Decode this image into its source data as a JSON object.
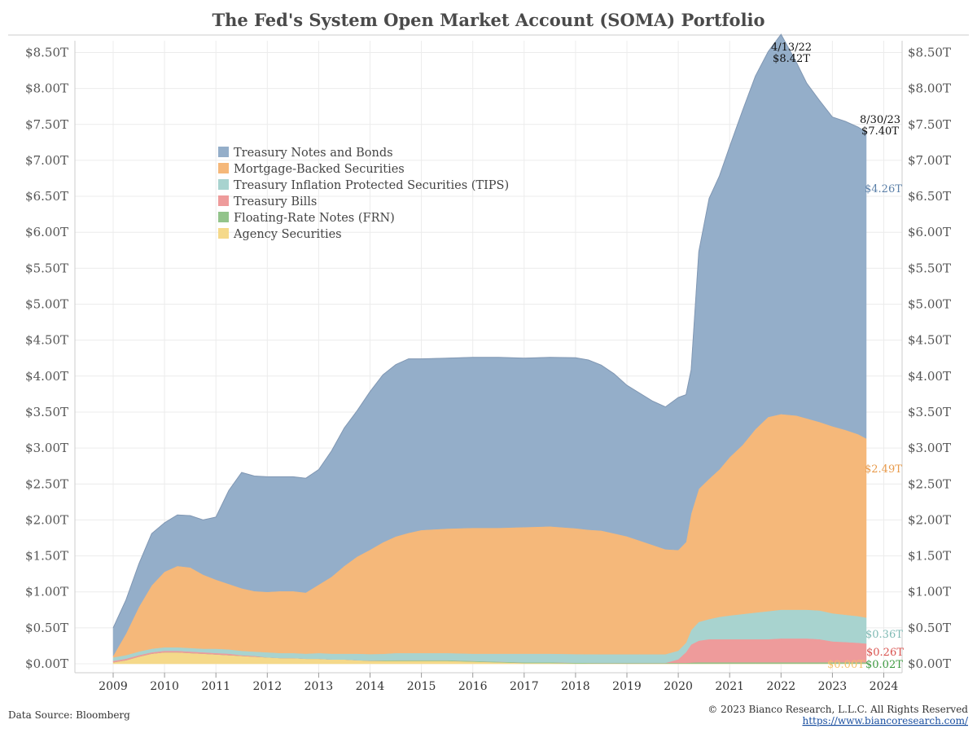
{
  "chart_data": {
    "type": "area",
    "stacked": true,
    "title": "The Fed's System Open Market Account (SOMA) Portfolio",
    "y_ticks": [
      "$0.00T",
      "$0.50T",
      "$1.00T",
      "$1.50T",
      "$2.00T",
      "$2.50T",
      "$3.00T",
      "$3.50T",
      "$4.00T",
      "$4.50T",
      "$5.00T",
      "$5.50T",
      "$6.00T",
      "$6.50T",
      "$7.00T",
      "$7.50T",
      "$8.00T",
      "$8.50T"
    ],
    "x_ticks": [
      "2009",
      "2010",
      "2011",
      "2012",
      "2013",
      "2014",
      "2015",
      "2016",
      "2017",
      "2018",
      "2019",
      "2020",
      "2021",
      "2022",
      "2023",
      "2024"
    ],
    "ylim": [
      0,
      8.7
    ],
    "xlim": [
      2008.9,
      2024.3
    ],
    "grid": true,
    "legend_position": "upper-left",
    "x": [
      2009.0,
      2009.25,
      2009.5,
      2009.75,
      2010.0,
      2010.25,
      2010.5,
      2010.75,
      2011.0,
      2011.25,
      2011.5,
      2011.75,
      2012.0,
      2012.25,
      2012.5,
      2012.75,
      2013.0,
      2013.25,
      2013.5,
      2013.75,
      2014.0,
      2014.25,
      2014.5,
      2014.75,
      2015.0,
      2015.5,
      2016.0,
      2016.5,
      2017.0,
      2017.5,
      2018.0,
      2018.25,
      2018.5,
      2018.75,
      2019.0,
      2019.25,
      2019.5,
      2019.75,
      2020.0,
      2020.15,
      2020.25,
      2020.4,
      2020.6,
      2020.8,
      2021.0,
      2021.25,
      2021.5,
      2021.75,
      2022.0,
      2022.3,
      2022.5,
      2022.75,
      2023.0,
      2023.25,
      2023.5,
      2023.66
    ],
    "series": [
      {
        "name": "Agency Securities",
        "color": "#f5d98a",
        "values": [
          0.02,
          0.05,
          0.1,
          0.14,
          0.16,
          0.16,
          0.15,
          0.14,
          0.13,
          0.12,
          0.11,
          0.1,
          0.09,
          0.08,
          0.08,
          0.07,
          0.07,
          0.06,
          0.06,
          0.05,
          0.04,
          0.04,
          0.04,
          0.04,
          0.04,
          0.04,
          0.03,
          0.02,
          0.01,
          0.01,
          0.005,
          0.004,
          0.003,
          0.003,
          0.002,
          0.002,
          0.002,
          0.002,
          0.002,
          0.002,
          0.002,
          0.002,
          0.002,
          0.002,
          0.002,
          0.002,
          0.002,
          0.002,
          0.002,
          0.002,
          0.002,
          0.002,
          0.002,
          0.002,
          0.002,
          0.002
        ]
      },
      {
        "name": "Floating-Rate Notes (FRN)",
        "color": "#93c48b",
        "values": [
          0,
          0,
          0,
          0,
          0,
          0,
          0,
          0,
          0,
          0,
          0,
          0,
          0,
          0,
          0,
          0,
          0,
          0,
          0,
          0,
          0.005,
          0.008,
          0.01,
          0.01,
          0.01,
          0.01,
          0.01,
          0.01,
          0.01,
          0.01,
          0.01,
          0.01,
          0.01,
          0.01,
          0.01,
          0.01,
          0.01,
          0.01,
          0.01,
          0.01,
          0.015,
          0.02,
          0.02,
          0.02,
          0.02,
          0.02,
          0.02,
          0.02,
          0.02,
          0.02,
          0.02,
          0.02,
          0.02,
          0.02,
          0.02,
          0.02
        ]
      },
      {
        "name": "Treasury Bills",
        "color": "#ee9b9b",
        "values": [
          0.02,
          0.02,
          0.02,
          0.02,
          0.02,
          0.02,
          0.02,
          0.02,
          0.02,
          0.02,
          0.01,
          0.01,
          0.0,
          0.0,
          0.0,
          0.0,
          0.0,
          0.0,
          0.0,
          0.0,
          0.0,
          0.0,
          0.0,
          0.0,
          0.0,
          0.0,
          0.0,
          0.0,
          0.0,
          0.0,
          0.0,
          0.0,
          0.0,
          0.0,
          0.0,
          0.0,
          0.0,
          0.0,
          0.05,
          0.15,
          0.25,
          0.3,
          0.32,
          0.32,
          0.32,
          0.32,
          0.32,
          0.32,
          0.33,
          0.33,
          0.33,
          0.32,
          0.29,
          0.28,
          0.27,
          0.26
        ]
      },
      {
        "name": "Treasury Inflation Protected Securities (TIPS)",
        "color": "#a8d3cf",
        "values": [
          0.05,
          0.05,
          0.05,
          0.05,
          0.05,
          0.05,
          0.05,
          0.05,
          0.06,
          0.06,
          0.06,
          0.06,
          0.07,
          0.07,
          0.07,
          0.07,
          0.08,
          0.08,
          0.08,
          0.09,
          0.09,
          0.09,
          0.1,
          0.1,
          0.1,
          0.1,
          0.1,
          0.11,
          0.12,
          0.12,
          0.12,
          0.12,
          0.12,
          0.12,
          0.12,
          0.12,
          0.12,
          0.12,
          0.12,
          0.13,
          0.2,
          0.26,
          0.28,
          0.31,
          0.33,
          0.35,
          0.37,
          0.39,
          0.4,
          0.4,
          0.4,
          0.4,
          0.39,
          0.38,
          0.37,
          0.36
        ]
      },
      {
        "name": "Mortgage-Backed Securities",
        "color": "#f5b87a",
        "values": [
          0.02,
          0.3,
          0.62,
          0.88,
          1.05,
          1.13,
          1.12,
          1.03,
          0.96,
          0.91,
          0.87,
          0.84,
          0.84,
          0.86,
          0.86,
          0.85,
          0.95,
          1.07,
          1.22,
          1.35,
          1.45,
          1.55,
          1.62,
          1.67,
          1.71,
          1.73,
          1.75,
          1.75,
          1.76,
          1.77,
          1.75,
          1.73,
          1.72,
          1.68,
          1.64,
          1.58,
          1.52,
          1.46,
          1.4,
          1.4,
          1.62,
          1.85,
          1.95,
          2.05,
          2.2,
          2.35,
          2.55,
          2.7,
          2.72,
          2.7,
          2.66,
          2.62,
          2.6,
          2.57,
          2.53,
          2.49
        ]
      },
      {
        "name": "Treasury Notes and Bonds",
        "color": "#94aec9",
        "values": [
          0.39,
          0.47,
          0.6,
          0.72,
          0.68,
          0.71,
          0.72,
          0.76,
          0.87,
          1.3,
          1.61,
          1.6,
          1.6,
          1.59,
          1.59,
          1.59,
          1.6,
          1.75,
          1.92,
          2.03,
          2.2,
          2.33,
          2.39,
          2.42,
          2.38,
          2.37,
          2.37,
          2.37,
          2.35,
          2.35,
          2.37,
          2.36,
          2.3,
          2.22,
          2.1,
          2.05,
          2.0,
          1.98,
          2.12,
          2.05,
          2.0,
          3.3,
          3.9,
          4.08,
          4.32,
          4.65,
          4.91,
          5.08,
          5.28,
          4.91,
          4.66,
          4.47,
          4.3,
          4.29,
          4.27,
          4.26
        ]
      }
    ],
    "annotations": [
      {
        "date": "4/13/22",
        "value": "$8.42T"
      },
      {
        "date": "8/30/23",
        "value": "$7.40T"
      }
    ],
    "end_labels": [
      {
        "text": "$4.26T",
        "color": "#5a7fa8"
      },
      {
        "text": "$2.49T",
        "color": "#e89a4a"
      },
      {
        "text": "$0.36T",
        "color": "#7fbab4"
      },
      {
        "text": "$0.26T",
        "color": "#d9534f"
      },
      {
        "text": "$0.00T",
        "color": "#f5c26b"
      },
      {
        "text": "$0.02T",
        "color": "#3d9a40"
      }
    ]
  },
  "footer": {
    "source": "Data Source: Bloomberg",
    "copyright": "© 2023 Bianco Research, L.L.C. All Rights Reserved",
    "url": "https://www.biancoresearch.com/"
  }
}
